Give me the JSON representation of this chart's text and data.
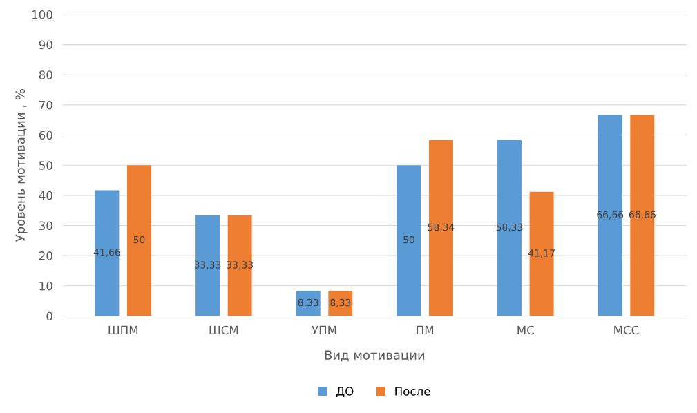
{
  "chart_data": {
    "type": "bar",
    "xlabel": "Вид мотивации",
    "ylabel": "Уровень мотивации , %",
    "categories": [
      "ШПМ",
      "ШСМ",
      "УПМ",
      "ПМ",
      "МС",
      "МСС"
    ],
    "series": [
      {
        "name": "ДО",
        "color": "#5b9bd5",
        "values": [
          41.66,
          33.33,
          8.33,
          50,
          58.33,
          66.66
        ],
        "value_labels": [
          "41,66",
          "33,33",
          "8,33",
          "50",
          "58,33",
          "66,66"
        ]
      },
      {
        "name": "После",
        "color": "#ed7d31",
        "values": [
          50,
          33.33,
          8.33,
          58.34,
          41.17,
          66.66
        ],
        "value_labels": [
          "50",
          "33,33",
          "8,33",
          "58,34",
          "41,17",
          "66,66"
        ]
      }
    ],
    "ylim": [
      0,
      100
    ],
    "yticks": [
      0,
      10,
      20,
      30,
      40,
      50,
      60,
      70,
      80,
      90,
      100
    ],
    "grid": "y",
    "legend": "bottom"
  }
}
